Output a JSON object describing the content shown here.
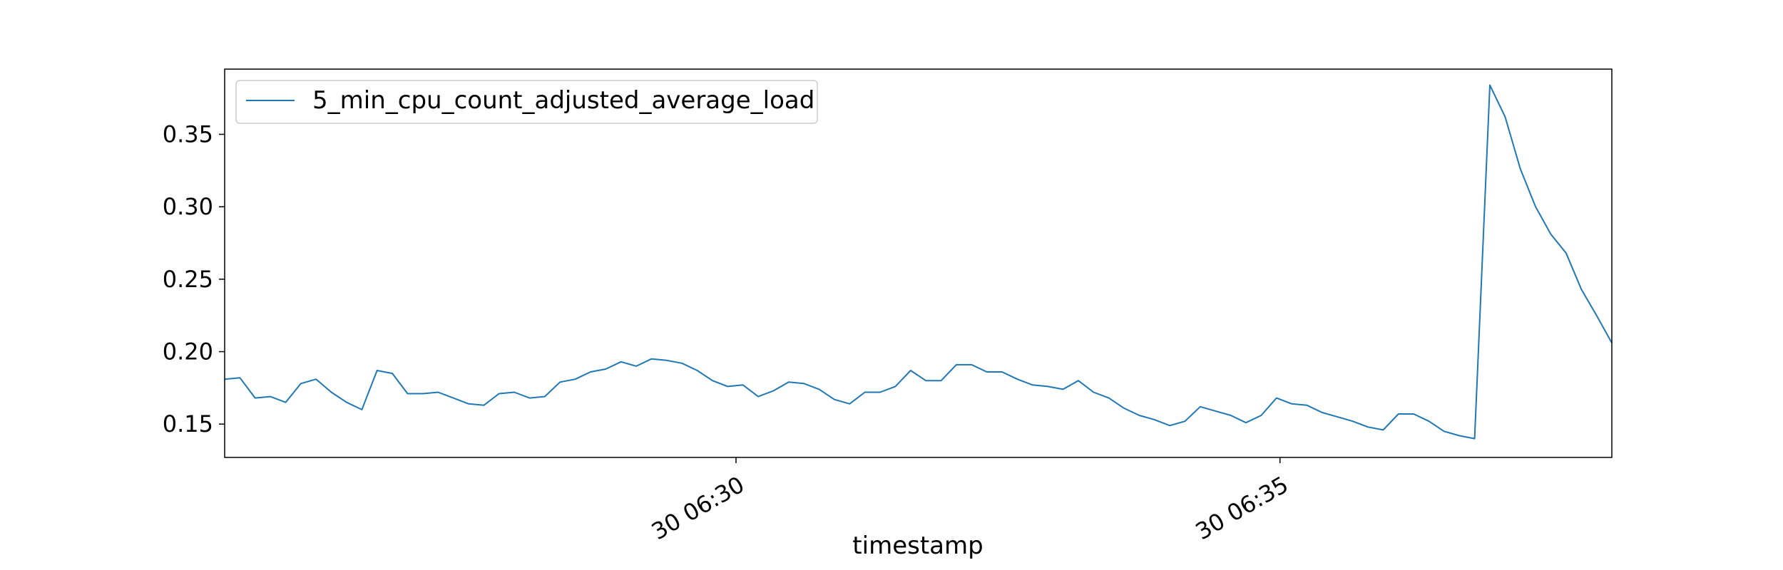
{
  "chart_data": {
    "type": "line",
    "title": "",
    "xlabel": "timestamp",
    "ylabel": "",
    "x_ticks": [
      {
        "minute": 4.7,
        "label": "30 06:30"
      },
      {
        "minute": 9.7,
        "label": "30 06:35"
      }
    ],
    "y_ticks": [
      0.15,
      0.2,
      0.25,
      0.3,
      0.35
    ],
    "y_tick_labels": [
      "0.15",
      "0.20",
      "0.25",
      "0.30",
      "0.35"
    ],
    "xlim": [
      0,
      12.75
    ],
    "ylim": [
      0.127,
      0.395
    ],
    "grid": false,
    "legend_position": "upper-left",
    "colors": {
      "line": "#1f77b4",
      "axes": "#000000",
      "legend_border": "#cccccc"
    },
    "series": [
      {
        "name": "5_min_cpu_count_adjusted_average_load",
        "values": [
          0.181,
          0.182,
          0.168,
          0.169,
          0.165,
          0.178,
          0.181,
          0.172,
          0.165,
          0.16,
          0.187,
          0.185,
          0.171,
          0.171,
          0.172,
          0.168,
          0.164,
          0.163,
          0.171,
          0.172,
          0.168,
          0.169,
          0.179,
          0.181,
          0.186,
          0.188,
          0.193,
          0.19,
          0.195,
          0.194,
          0.192,
          0.187,
          0.18,
          0.176,
          0.177,
          0.169,
          0.173,
          0.179,
          0.178,
          0.174,
          0.167,
          0.164,
          0.172,
          0.172,
          0.176,
          0.187,
          0.18,
          0.18,
          0.191,
          0.191,
          0.186,
          0.186,
          0.181,
          0.177,
          0.176,
          0.174,
          0.18,
          0.172,
          0.168,
          0.161,
          0.156,
          0.153,
          0.149,
          0.152,
          0.162,
          0.159,
          0.156,
          0.151,
          0.156,
          0.168,
          0.164,
          0.163,
          0.158,
          0.155,
          0.152,
          0.148,
          0.146,
          0.157,
          0.157,
          0.152,
          0.145,
          0.142,
          0.14,
          0.384,
          0.362,
          0.326,
          0.3,
          0.281,
          0.268,
          0.243,
          0.225,
          0.206
        ]
      }
    ]
  }
}
